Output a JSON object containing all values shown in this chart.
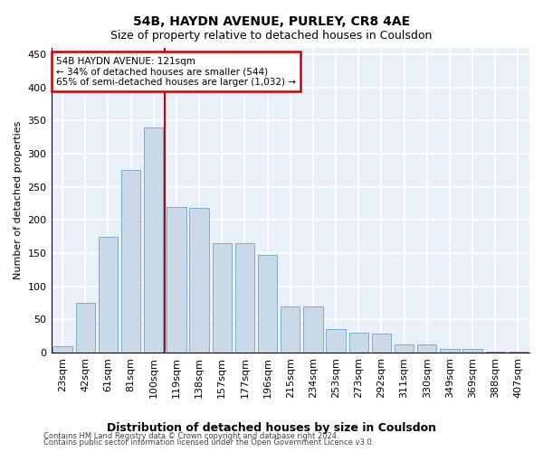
{
  "title": "54B, HAYDN AVENUE, PURLEY, CR8 4AE",
  "subtitle": "Size of property relative to detached houses in Coulsdon",
  "xlabel": "Distribution of detached houses by size in Coulsdon",
  "ylabel": "Number of detached properties",
  "bin_labels": [
    "23sqm",
    "42sqm",
    "61sqm",
    "81sqm",
    "100sqm",
    "119sqm",
    "138sqm",
    "157sqm",
    "177sqm",
    "196sqm",
    "215sqm",
    "234sqm",
    "253sqm",
    "273sqm",
    "292sqm",
    "311sqm",
    "330sqm",
    "349sqm",
    "369sqm",
    "388sqm",
    "407sqm"
  ],
  "bar_values": [
    10,
    75,
    175,
    275,
    340,
    220,
    218,
    165,
    165,
    147,
    70,
    70,
    36,
    30,
    28,
    12,
    12,
    6,
    5,
    2,
    2
  ],
  "bar_color": "#c9d9e8",
  "bar_edgecolor": "#7aafc8",
  "property_line_value": 119,
  "annotation_text": "54B HAYDN AVENUE: 121sqm\n← 34% of detached houses are smaller (544)\n65% of semi-detached houses are larger (1,032) →",
  "annotation_box_facecolor": "#ffffff",
  "annotation_box_edgecolor": "#cc0000",
  "vline_color": "#cc0000",
  "ylim": [
    0,
    460
  ],
  "xlim_start": 0,
  "background_color": "#eaf0f8",
  "grid_color": "#ffffff",
  "footer1": "Contains HM Land Registry data © Crown copyright and database right 2024.",
  "footer2": "Contains public sector information licensed under the Open Government Licence v3.0."
}
